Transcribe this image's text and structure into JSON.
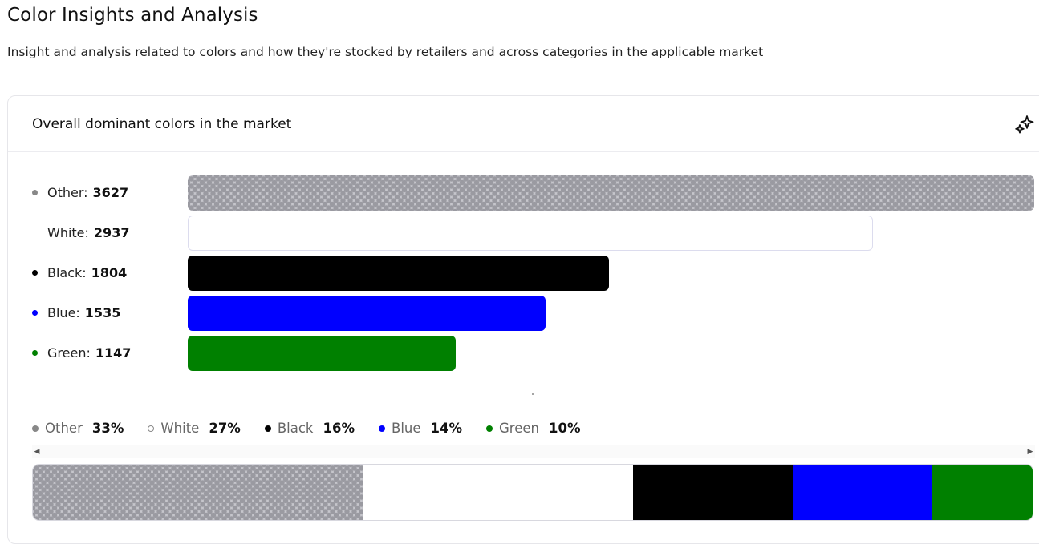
{
  "page": {
    "title": "Color Insights and Analysis",
    "subtitle": "Insight and analysis related to colors and how they're stocked by retailers and across categories in the applicable market"
  },
  "card": {
    "title": "Overall dominant colors in the market",
    "action_icon": "sparkle-icon"
  },
  "chart_data": {
    "type": "bar",
    "orientation": "horizontal",
    "categories": [
      "Other",
      "White",
      "Black",
      "Blue",
      "Green"
    ],
    "values": [
      3627,
      2937,
      1804,
      1535,
      1147
    ],
    "colors": [
      "#9a9aa1",
      "#ffffff",
      "#000000",
      "#0000ff",
      "#008000"
    ],
    "legend": [
      {
        "name": "Other",
        "percent": "33%",
        "color": "#888888"
      },
      {
        "name": "White",
        "percent": "27%",
        "color": "#ffffff"
      },
      {
        "name": "Black",
        "percent": "16%",
        "color": "#000000"
      },
      {
        "name": "Blue",
        "percent": "14%",
        "color": "#0000ff"
      },
      {
        "name": "Green",
        "percent": "10%",
        "color": "#008000"
      }
    ],
    "stacked_shares": [
      33,
      27,
      16,
      14,
      10
    ]
  },
  "rows": [
    {
      "name": "Other",
      "sep": ":",
      "value": "3627"
    },
    {
      "name": "White",
      "sep": ":",
      "value": "2937"
    },
    {
      "name": "Black",
      "sep": ":",
      "value": "1804"
    },
    {
      "name": "Blue",
      "sep": ":",
      "value": "1535"
    },
    {
      "name": "Green",
      "sep": ":",
      "value": "1147"
    }
  ]
}
